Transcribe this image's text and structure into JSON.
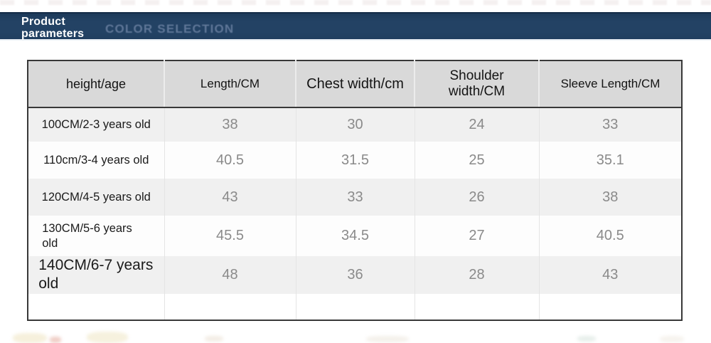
{
  "banner": {
    "left_label": "Product parameters",
    "watermark": "COLOR SELECTION",
    "bg_color": "#234264",
    "watermark_color": "#62799a"
  },
  "table": {
    "columns": [
      "height/age",
      "Length/CM",
      "Chest width/cm",
      "Shoulder width/CM",
      "Sleeve Length/CM"
    ],
    "rows": [
      {
        "label": "100CM/2-3 years old",
        "values": [
          "38",
          "30",
          "24",
          "33"
        ]
      },
      {
        "label": "110cm/3-4 years old",
        "values": [
          "40.5",
          "31.5",
          "25",
          "35.1"
        ]
      },
      {
        "label": "120CM/4-5 years old",
        "values": [
          "43",
          "33",
          "26",
          "38"
        ]
      },
      {
        "label": "130CM/5-6 years old",
        "values": [
          "45.5",
          "34.5",
          "27",
          "40.5"
        ]
      },
      {
        "label": "140CM/6-7 years old",
        "values": [
          "48",
          "36",
          "28",
          "43"
        ]
      }
    ],
    "colors": {
      "header_bg": "#d9d9d9",
      "stripe_bg": "#f0f0f0",
      "border": "#383838",
      "number_text": "#8a8a8a"
    }
  }
}
